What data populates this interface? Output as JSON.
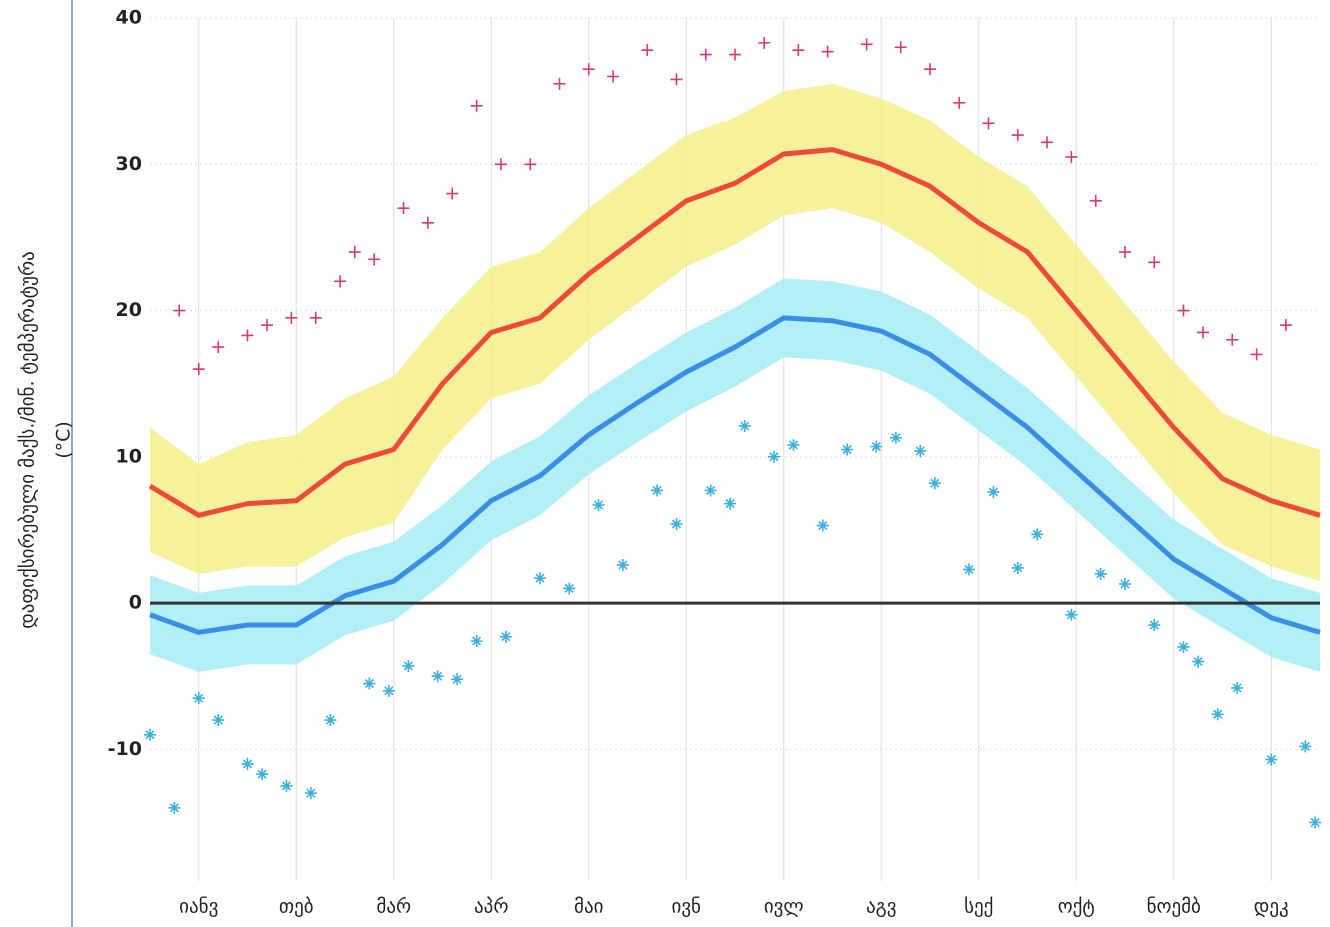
{
  "chart_data": {
    "type": "line",
    "ylabel": "დაფიქსირებული მაქს./მინ. ტემპერატურა",
    "ylabel_unit": "(°C)",
    "xlim": [
      0,
      12
    ],
    "xticks": [
      {
        "value": 0.5,
        "label": "იანვ"
      },
      {
        "value": 1.5,
        "label": "თებ"
      },
      {
        "value": 2.5,
        "label": "მარ"
      },
      {
        "value": 3.5,
        "label": "აპრ"
      },
      {
        "value": 4.5,
        "label": "მაი"
      },
      {
        "value": 5.5,
        "label": "ივნ"
      },
      {
        "value": 6.5,
        "label": "ივლ"
      },
      {
        "value": 7.5,
        "label": "აგვ"
      },
      {
        "value": 8.5,
        "label": "სექ"
      },
      {
        "value": 9.5,
        "label": "ოქტ"
      },
      {
        "value": 10.5,
        "label": "ნოემბ"
      },
      {
        "value": 11.5,
        "label": "დეკ"
      }
    ],
    "ylim": [
      -19,
      40
    ],
    "yticks": [
      40,
      30,
      20,
      10,
      0,
      -10
    ],
    "grid": true,
    "x": [
      0,
      0.5,
      1,
      1.5,
      2,
      2.5,
      3,
      3.5,
      4,
      4.5,
      5,
      5.5,
      6,
      6.5,
      7,
      7.5,
      8,
      8.5,
      9,
      9.5,
      10,
      10.5,
      11,
      11.5,
      12
    ],
    "series": [
      {
        "kind": "band",
        "color": "#f5f08a",
        "low": [
          3.5,
          2,
          2.5,
          2.5,
          4.5,
          5.5,
          10.5,
          14,
          15,
          18,
          20.5,
          23,
          24.5,
          26.5,
          27,
          26,
          24,
          21.5,
          19.5,
          15.5,
          11.5,
          7.5,
          4,
          2.5,
          1.5
        ],
        "high": [
          12,
          9.5,
          11,
          11.5,
          14,
          15.5,
          19.5,
          23,
          24,
          27,
          29.5,
          32,
          33.2,
          35,
          35.5,
          34.5,
          33,
          30.5,
          28.5,
          24.5,
          20.5,
          16.5,
          13,
          11.5,
          10.5
        ]
      },
      {
        "kind": "band",
        "color": "#a6ecf5",
        "low": [
          -3.5,
          -4.7,
          -4.2,
          -4.2,
          -2.2,
          -1.2,
          1.3,
          4.3,
          6,
          8.8,
          11,
          13.1,
          14.8,
          16.8,
          16.6,
          15.9,
          14.3,
          11.8,
          9.3,
          6.3,
          3.3,
          0.3,
          -1.7,
          -3.7,
          -4.7
        ],
        "high": [
          1.9,
          0.7,
          1.2,
          1.2,
          3.2,
          4.2,
          6.7,
          9.7,
          11.4,
          14.2,
          16.4,
          18.5,
          20.2,
          22.2,
          22,
          21.3,
          19.7,
          17.2,
          14.7,
          11.7,
          8.7,
          5.7,
          3.7,
          1.7,
          0.7
        ]
      },
      {
        "kind": "line",
        "color": "#ee4a3a",
        "values": [
          8,
          6,
          6.8,
          7,
          9.5,
          10.5,
          15,
          18.5,
          19.5,
          22.5,
          25,
          27.5,
          28.7,
          30.7,
          31,
          30,
          28.5,
          26,
          24,
          20,
          16,
          12,
          8.5,
          7,
          6
        ]
      },
      {
        "kind": "line",
        "color": "#3a8ee6",
        "values": [
          -0.8,
          -2,
          -1.5,
          -1.5,
          0.5,
          1.5,
          4,
          7,
          8.7,
          11.5,
          13.7,
          15.8,
          17.5,
          19.5,
          19.3,
          18.6,
          17,
          14.5,
          12,
          9,
          6,
          3,
          1,
          -1,
          -2
        ]
      },
      {
        "kind": "scatter",
        "marker": "plus",
        "color": "#d83a6a",
        "x": [
          0.3,
          0.5,
          0.7,
          1,
          1.2,
          1.45,
          1.7,
          1.95,
          2.1,
          2.3,
          2.6,
          2.85,
          3.1,
          3.35,
          3.6,
          3.9,
          4.2,
          4.5,
          4.75,
          5.1,
          5.4,
          5.7,
          6,
          6.3,
          6.65,
          6.95,
          7.35,
          7.7,
          8,
          8.3,
          8.6,
          8.9,
          9.2,
          9.45,
          9.7,
          10,
          10.3,
          10.6,
          10.8,
          11.1,
          11.35,
          11.65
        ],
        "values": [
          20,
          16,
          17.5,
          18.3,
          19,
          19.5,
          19.5,
          22,
          24,
          23.5,
          27,
          26,
          28,
          34,
          30,
          30,
          35.5,
          36.5,
          36,
          37.8,
          35.8,
          37.5,
          37.5,
          38.3,
          37.8,
          37.7,
          38.2,
          38,
          36.5,
          34.2,
          32.8,
          32,
          31.5,
          30.5,
          27.5,
          24,
          23.3,
          20,
          18.5,
          18,
          17,
          19
        ]
      },
      {
        "kind": "scatter",
        "marker": "star",
        "color": "#3ab0e0",
        "x": [
          0,
          0.25,
          0.5,
          0.7,
          1,
          1.15,
          1.4,
          1.65,
          1.85,
          2.25,
          2.45,
          2.65,
          2.95,
          3.15,
          3.35,
          3.65,
          4,
          4.3,
          4.6,
          4.85,
          5.2,
          5.4,
          5.75,
          5.95,
          6.1,
          6.4,
          6.6,
          6.9,
          7.15,
          7.45,
          7.65,
          7.9,
          8.05,
          8.4,
          8.65,
          8.9,
          9.1,
          9.45,
          9.75,
          10,
          10.3,
          10.6,
          10.75,
          10.95,
          11.15,
          11.5,
          11.85,
          11.95
        ],
        "values": [
          -9,
          -14,
          -6.5,
          -8,
          -11,
          -11.7,
          -12.5,
          -13,
          -8,
          -5.5,
          -6,
          -4.3,
          -5,
          -5.2,
          -2.6,
          -2.3,
          1.7,
          1,
          6.7,
          2.6,
          7.7,
          5.4,
          7.7,
          6.8,
          12.1,
          10,
          10.8,
          5.3,
          10.5,
          10.7,
          11.3,
          10.4,
          8.2,
          2.3,
          7.6,
          2.4,
          4.7,
          -0.8,
          2,
          1.3,
          -1.5,
          -3,
          -4,
          -7.6,
          -5.8,
          -10.7,
          -9.8,
          -15
        ]
      }
    ]
  }
}
